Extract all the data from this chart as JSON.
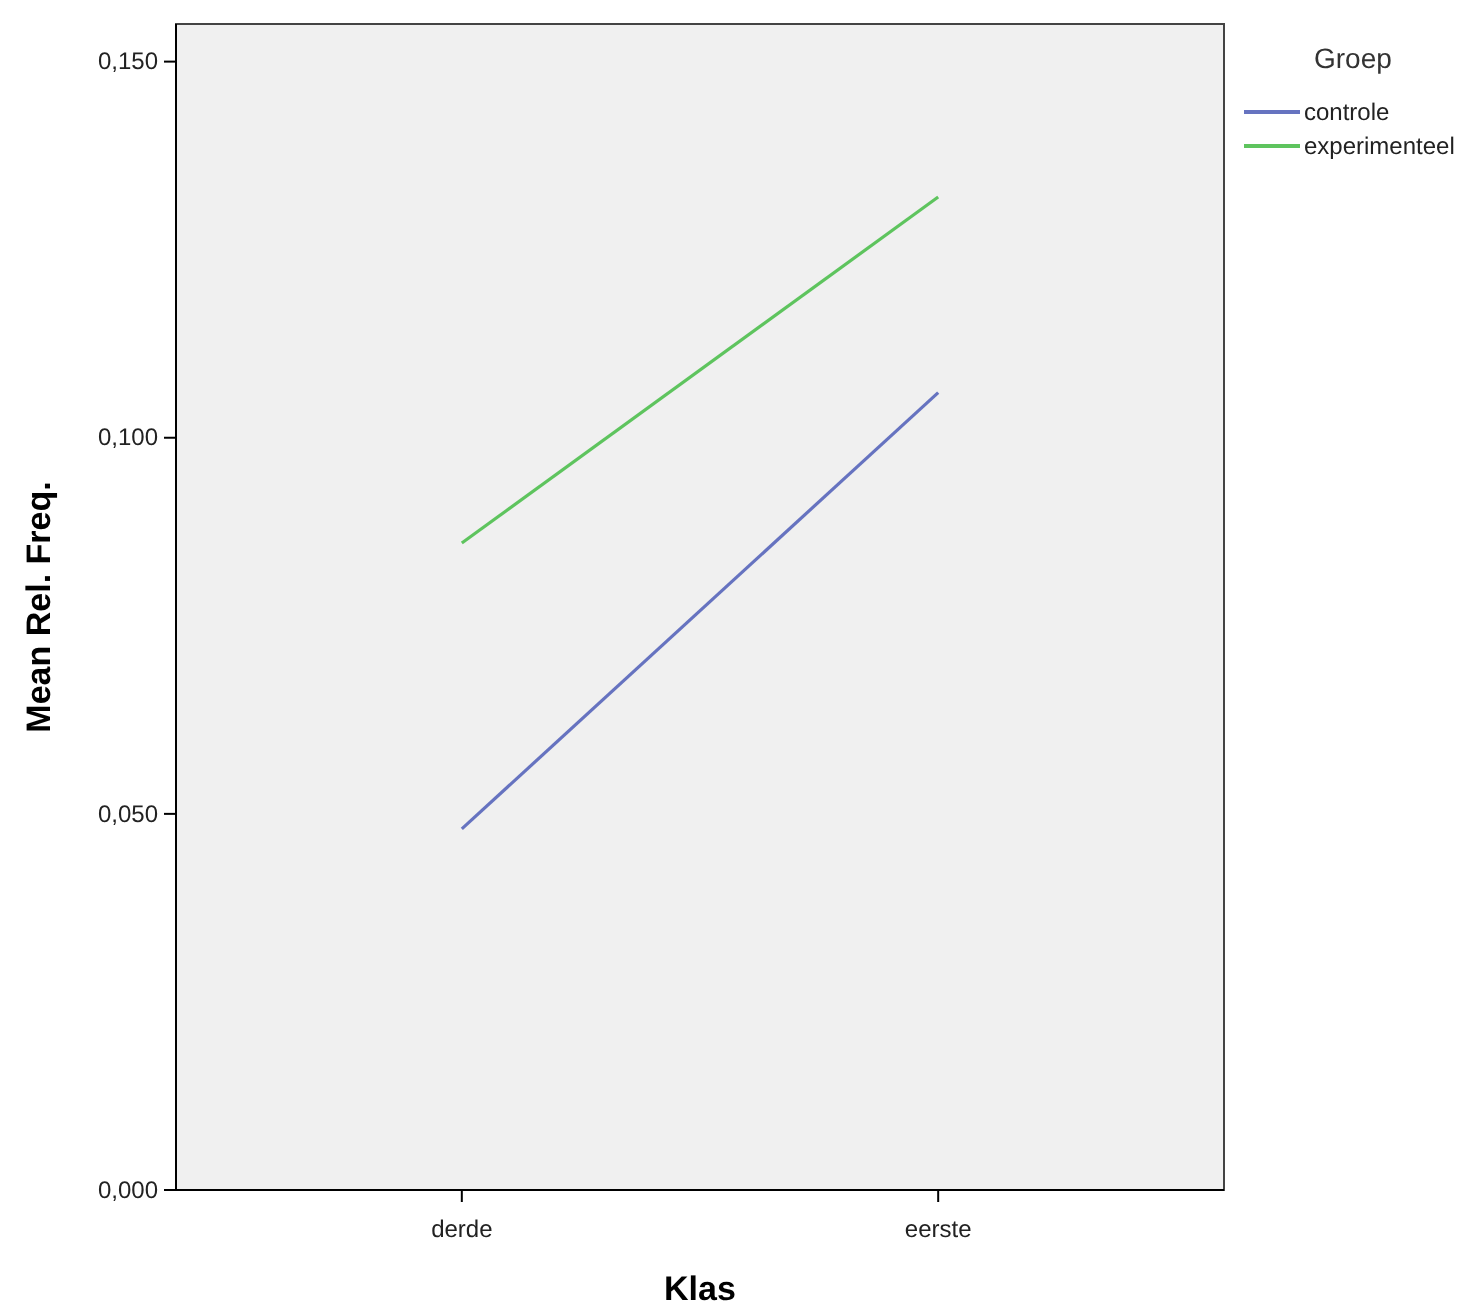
{
  "chart_data": {
    "type": "line",
    "xlabel": "Klas",
    "ylabel": "Mean Rel. Freq.",
    "legend_title": "Groep",
    "legend": "top right",
    "categories": [
      "derde",
      "eerste"
    ],
    "series": [
      {
        "name": "controle",
        "color": "#6673c0",
        "values": [
          0.048,
          0.106
        ]
      },
      {
        "name": "experimenteel",
        "color": "#5ec45e",
        "values": [
          0.086,
          0.132
        ]
      }
    ],
    "ylim": [
      0,
      0.155
    ],
    "yticks": [
      {
        "value": 0,
        "label": "0,000"
      },
      {
        "value": 0.05,
        "label": "0,050"
      },
      {
        "value": 0.1,
        "label": "0,100"
      },
      {
        "value": 0.15,
        "label": "0,150"
      }
    ],
    "marker": "none",
    "line_style": "solid"
  }
}
